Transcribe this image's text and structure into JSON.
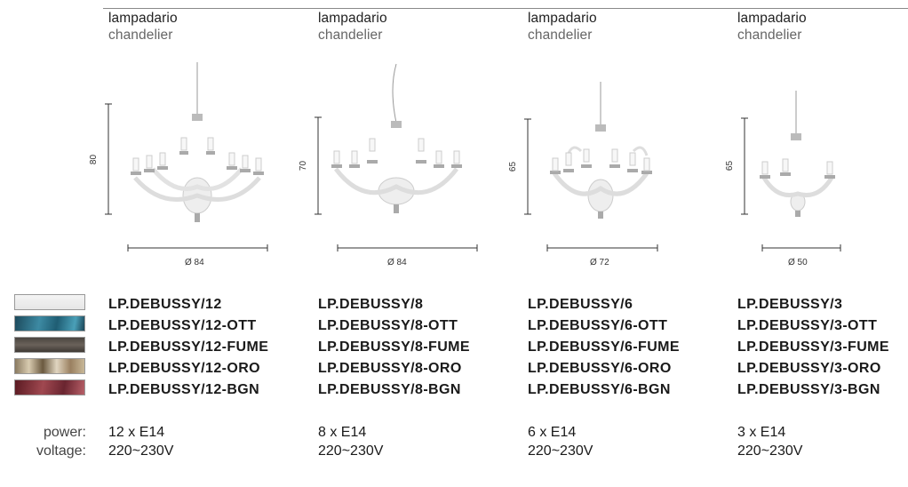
{
  "colors": [
    "white",
    "ott",
    "fume",
    "oro",
    "bgn"
  ],
  "labels": {
    "power": "power:",
    "voltage": "voltage:"
  },
  "products": [
    {
      "it": "lampadario",
      "en": "chandelier",
      "height": "80",
      "diameter": "Ø 84",
      "codes": [
        "LP.DEBUSSY/12",
        "LP.DEBUSSY/12-OTT",
        "LP.DEBUSSY/12-FUME",
        "LP.DEBUSSY/12-ORO",
        "LP.DEBUSSY/12-BGN"
      ],
      "power": "12 x E14",
      "voltage": "220~230V"
    },
    {
      "it": "lampadario",
      "en": "chandelier",
      "height": "70",
      "diameter": "Ø 84",
      "codes": [
        "LP.DEBUSSY/8",
        "LP.DEBUSSY/8-OTT",
        "LP.DEBUSSY/8-FUME",
        "LP.DEBUSSY/8-ORO",
        "LP.DEBUSSY/8-BGN"
      ],
      "power": "8 x E14",
      "voltage": "220~230V"
    },
    {
      "it": "lampadario",
      "en": "chandelier",
      "height": "65",
      "diameter": "Ø 72",
      "codes": [
        "LP.DEBUSSY/6",
        "LP.DEBUSSY/6-OTT",
        "LP.DEBUSSY/6-FUME",
        "LP.DEBUSSY/6-ORO",
        "LP.DEBUSSY/6-BGN"
      ],
      "power": "6 x E14",
      "voltage": "220~230V"
    },
    {
      "it": "lampadario",
      "en": "chandelier",
      "height": "65",
      "diameter": "Ø 50",
      "codes": [
        "LP.DEBUSSY/3",
        "LP.DEBUSSY/3-OTT",
        "LP.DEBUSSY/3-FUME",
        "LP.DEBUSSY/3-ORO",
        "LP.DEBUSSY/3-BGN"
      ],
      "power": "3 x E14",
      "voltage": "220~230V"
    }
  ]
}
